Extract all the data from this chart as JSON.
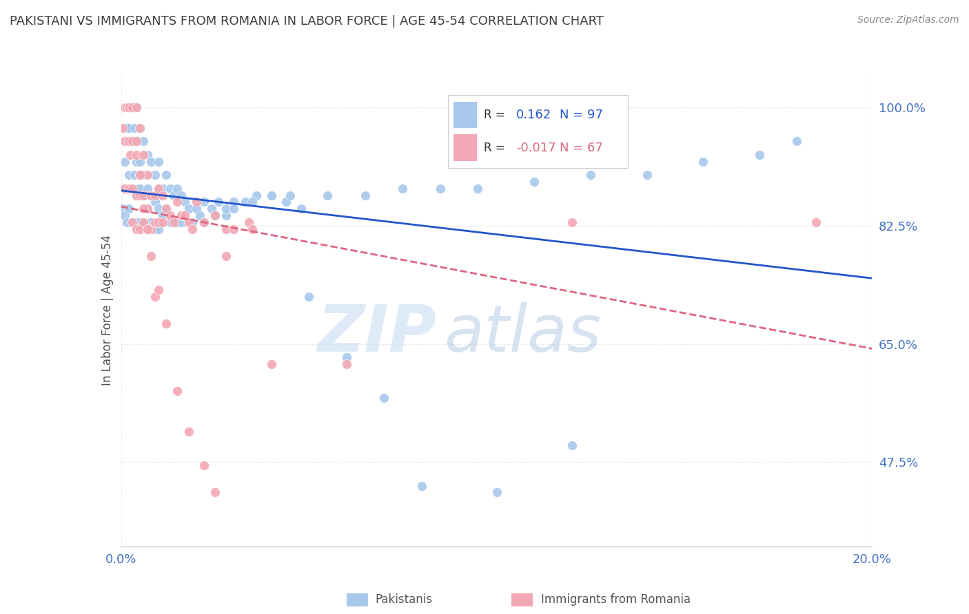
{
  "title": "PAKISTANI VS IMMIGRANTS FROM ROMANIA IN LABOR FORCE | AGE 45-54 CORRELATION CHART",
  "source": "Source: ZipAtlas.com",
  "ylabel": "In Labor Force | Age 45-54",
  "xlim": [
    0.0,
    0.2
  ],
  "ylim": [
    0.35,
    1.05
  ],
  "ytick_values": [
    0.475,
    0.65,
    0.825,
    1.0
  ],
  "xtick_values": [
    0.0,
    0.05,
    0.1,
    0.15,
    0.2
  ],
  "R_blue": 0.162,
  "N_blue": 97,
  "R_pink": -0.017,
  "N_pink": 67,
  "blue_color": "#A8C8EC",
  "pink_color": "#F2A8B4",
  "line_blue": "#2255CC",
  "line_pink": "#DD6680",
  "background_color": "#FFFFFF",
  "title_color": "#404040",
  "ytick_color": "#4472C4",
  "xtick_color": "#4472C4",
  "grid_color": "#DDDDDD",
  "blue_scatter_x": [
    0.0005,
    0.001,
    0.001,
    0.001,
    0.0015,
    0.0015,
    0.002,
    0.002,
    0.002,
    0.002,
    0.0025,
    0.003,
    0.003,
    0.003,
    0.003,
    0.0035,
    0.0035,
    0.004,
    0.004,
    0.004,
    0.004,
    0.004,
    0.0045,
    0.005,
    0.005,
    0.005,
    0.005,
    0.0055,
    0.006,
    0.006,
    0.006,
    0.006,
    0.007,
    0.007,
    0.007,
    0.007,
    0.008,
    0.008,
    0.008,
    0.009,
    0.009,
    0.009,
    0.01,
    0.01,
    0.01,
    0.01,
    0.011,
    0.011,
    0.012,
    0.012,
    0.013,
    0.013,
    0.014,
    0.014,
    0.015,
    0.015,
    0.016,
    0.016,
    0.017,
    0.018,
    0.019,
    0.02,
    0.021,
    0.022,
    0.024,
    0.026,
    0.028,
    0.03,
    0.033,
    0.036,
    0.04,
    0.044,
    0.048,
    0.055,
    0.065,
    0.075,
    0.085,
    0.095,
    0.11,
    0.125,
    0.14,
    0.155,
    0.17,
    0.022,
    0.025,
    0.028,
    0.03,
    0.035,
    0.04,
    0.045,
    0.05,
    0.06,
    0.07,
    0.08,
    0.1,
    0.12,
    0.18
  ],
  "blue_scatter_y": [
    0.85,
    0.84,
    0.88,
    0.92,
    0.97,
    0.83,
    1.0,
    0.97,
    0.9,
    0.85,
    0.88,
    1.0,
    0.95,
    0.88,
    0.83,
    0.97,
    0.9,
    1.0,
    0.95,
    0.92,
    0.87,
    0.83,
    0.88,
    0.97,
    0.92,
    0.88,
    0.83,
    0.87,
    0.95,
    0.9,
    0.87,
    0.83,
    0.93,
    0.88,
    0.85,
    0.82,
    0.92,
    0.87,
    0.83,
    0.9,
    0.86,
    0.82,
    0.92,
    0.88,
    0.85,
    0.82,
    0.88,
    0.84,
    0.9,
    0.85,
    0.88,
    0.83,
    0.87,
    0.83,
    0.88,
    0.83,
    0.87,
    0.83,
    0.86,
    0.85,
    0.83,
    0.85,
    0.84,
    0.86,
    0.85,
    0.86,
    0.84,
    0.86,
    0.86,
    0.87,
    0.87,
    0.86,
    0.85,
    0.87,
    0.87,
    0.88,
    0.88,
    0.88,
    0.89,
    0.9,
    0.9,
    0.92,
    0.93,
    0.83,
    0.84,
    0.85,
    0.85,
    0.86,
    0.87,
    0.87,
    0.72,
    0.63,
    0.57,
    0.44,
    0.43,
    0.5,
    0.95
  ],
  "pink_scatter_x": [
    0.0005,
    0.001,
    0.001,
    0.001,
    0.0015,
    0.002,
    0.002,
    0.002,
    0.0025,
    0.003,
    0.003,
    0.003,
    0.003,
    0.004,
    0.004,
    0.004,
    0.004,
    0.005,
    0.005,
    0.005,
    0.005,
    0.006,
    0.006,
    0.006,
    0.007,
    0.007,
    0.007,
    0.008,
    0.008,
    0.009,
    0.009,
    0.01,
    0.01,
    0.011,
    0.011,
    0.012,
    0.013,
    0.014,
    0.015,
    0.016,
    0.017,
    0.018,
    0.019,
    0.02,
    0.022,
    0.025,
    0.028,
    0.03,
    0.034,
    0.04,
    0.004,
    0.005,
    0.006,
    0.007,
    0.008,
    0.009,
    0.01,
    0.012,
    0.015,
    0.018,
    0.022,
    0.025,
    0.028,
    0.035,
    0.06,
    0.12,
    0.185
  ],
  "pink_scatter_y": [
    0.97,
    1.0,
    0.95,
    0.88,
    1.0,
    1.0,
    0.95,
    0.88,
    0.93,
    1.0,
    0.95,
    0.88,
    0.83,
    1.0,
    0.93,
    0.87,
    0.82,
    0.97,
    0.9,
    0.87,
    0.82,
    0.93,
    0.87,
    0.83,
    0.9,
    0.85,
    0.82,
    0.87,
    0.82,
    0.87,
    0.83,
    0.88,
    0.83,
    0.87,
    0.83,
    0.85,
    0.84,
    0.83,
    0.86,
    0.84,
    0.84,
    0.83,
    0.82,
    0.86,
    0.83,
    0.84,
    0.82,
    0.82,
    0.83,
    0.62,
    0.95,
    0.9,
    0.85,
    0.82,
    0.78,
    0.72,
    0.73,
    0.68,
    0.58,
    0.52,
    0.47,
    0.43,
    0.78,
    0.82,
    0.62,
    0.83,
    0.83
  ]
}
